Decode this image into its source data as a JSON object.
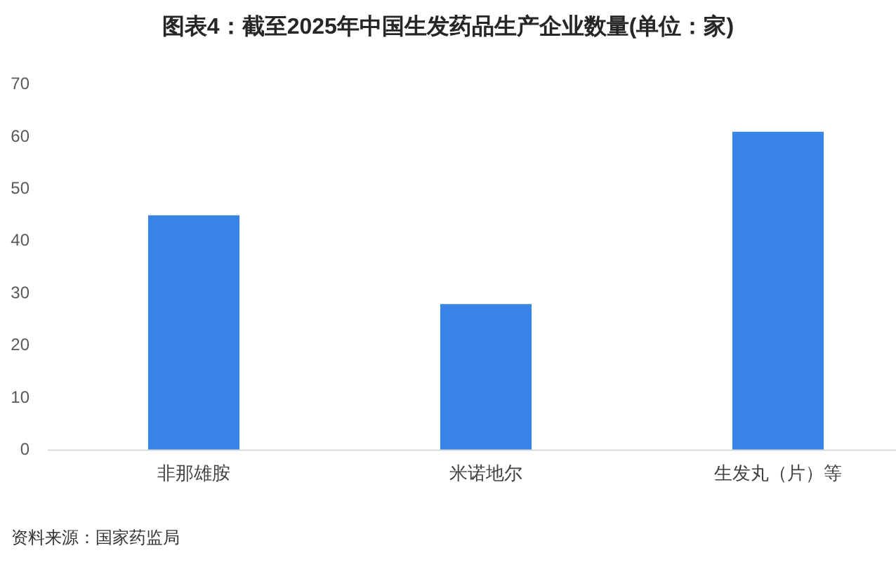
{
  "chart_data": {
    "type": "bar",
    "title": "图表4：截至2025年中国生发药品生产企业数量(单位：家)",
    "categories": [
      "非那雄胺",
      "米诺地尔",
      "生发丸（片）等"
    ],
    "values": [
      45,
      28,
      61
    ],
    "color": "#3783e6",
    "ylim": [
      0,
      70
    ],
    "yticks": [
      0,
      10,
      20,
      30,
      40,
      50,
      60,
      70
    ],
    "annotations": [
      "资料来源：国家药监局"
    ]
  }
}
